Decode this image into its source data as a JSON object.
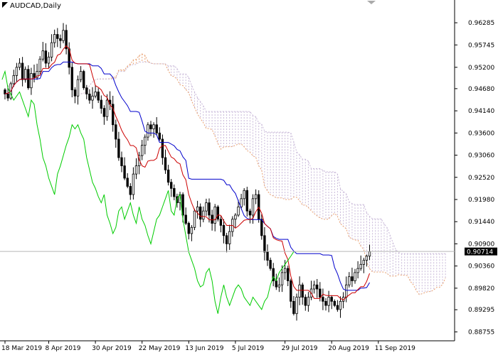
{
  "chart_data": {
    "type": "candlestick",
    "title": "AUDCAD,Daily",
    "current_price": "0.90714",
    "ylim": [
      0.8859,
      0.9658
    ],
    "y_ticks": [
      "0.96285",
      "0.95745",
      "0.95200",
      "0.94680",
      "0.94140",
      "0.93600",
      "0.93060",
      "0.92520",
      "0.91980",
      "0.91440",
      "0.90900",
      "0.90360",
      "0.89820",
      "0.89295",
      "0.88755"
    ],
    "x_ticks": [
      {
        "label": "18 Mar 2019",
        "index": 0
      },
      {
        "label": "8 Apr 2019",
        "index": 15
      },
      {
        "label": "30 Apr 2019",
        "index": 31
      },
      {
        "label": "22 May 2019",
        "index": 47
      },
      {
        "label": "13 Jun 2019",
        "index": 63
      },
      {
        "label": "5 Jul 2019",
        "index": 79
      },
      {
        "label": "29 Jul 2019",
        "index": 96
      },
      {
        "label": "20 Aug 2019",
        "index": 112
      },
      {
        "label": "11 Sep 2019",
        "index": 128
      }
    ],
    "closes": [
      0.9455,
      0.9445,
      0.948,
      0.95,
      0.952,
      0.953,
      0.949,
      0.9515,
      0.947,
      0.9505,
      0.9495,
      0.951,
      0.954,
      0.956,
      0.953,
      0.9545,
      0.958,
      0.96,
      0.959,
      0.9585,
      0.961,
      0.9565,
      0.952,
      0.9465,
      0.945,
      0.949,
      0.951,
      0.947,
      0.9455,
      0.944,
      0.945,
      0.946,
      0.944,
      0.942,
      0.94,
      0.944,
      0.943,
      0.938,
      0.9345,
      0.93,
      0.928,
      0.925,
      0.923,
      0.921,
      0.926,
      0.928,
      0.9305,
      0.933,
      0.935,
      0.938,
      0.937,
      0.938,
      0.936,
      0.9345,
      0.93,
      0.927,
      0.924,
      0.9225,
      0.9205,
      0.919,
      0.921,
      0.916,
      0.914,
      0.9115,
      0.913,
      0.917,
      0.918,
      0.915,
      0.917,
      0.919,
      0.916,
      0.914,
      0.918,
      0.915,
      0.9135,
      0.911,
      0.909,
      0.912,
      0.915,
      0.916,
      0.918,
      0.92,
      0.922,
      0.917,
      0.916,
      0.92,
      0.921,
      0.915,
      0.911,
      0.907,
      0.905,
      0.903,
      0.9,
      0.8985,
      0.899,
      0.902,
      0.903,
      0.9,
      0.895,
      0.892,
      0.896,
      0.899,
      0.896,
      0.894,
      0.896,
      0.898,
      0.899,
      0.898,
      0.896,
      0.895,
      0.894,
      0.896,
      0.895,
      0.894,
      0.893,
      0.895,
      0.896,
      0.899,
      0.901,
      0.9,
      0.902,
      0.903,
      0.904,
      0.905,
      0.906,
      0.9071
    ],
    "series": [
      {
        "name": "",
        "role": "tenkan",
        "color": "#cc0000"
      },
      {
        "name": "",
        "role": "kijun",
        "color": "#0000cc"
      },
      {
        "name": "",
        "role": "chikou",
        "color": "#00cc00"
      },
      {
        "name": "",
        "role": "senkou-a",
        "color": "#e8a070"
      },
      {
        "name": "",
        "role": "senkou-b",
        "color": "#c8b8d8"
      }
    ],
    "grid": false,
    "legend": "none"
  }
}
